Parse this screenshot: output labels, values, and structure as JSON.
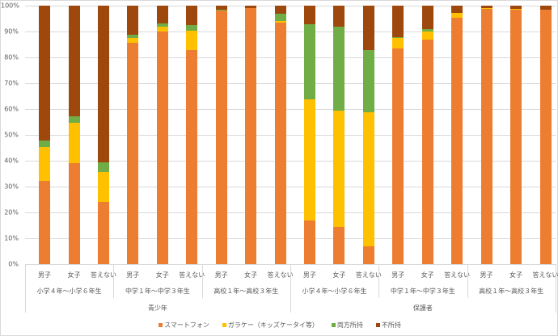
{
  "chart_data": {
    "type": "bar",
    "stacked": true,
    "percent": true,
    "title": "",
    "xlabel": "",
    "ylabel": "",
    "ylim": [
      0,
      100
    ],
    "y_ticks": [
      "0%",
      "10%",
      "20%",
      "30%",
      "40%",
      "50%",
      "60%",
      "70%",
      "80%",
      "90%",
      "100%"
    ],
    "grid": true,
    "legend_position": "bottom",
    "categories": [
      "青少年/小学４年～小学６年生/男子",
      "青少年/小学４年～小学６年生/女子",
      "青少年/小学４年～小学６年生/答えない",
      "青少年/中学１年～中学３年生/男子",
      "青少年/中学１年～中学３年生/女子",
      "青少年/中学１年～中学３年生/答えない",
      "青少年/高校１年～高校３年生/男子",
      "青少年/高校１年～高校３年生/女子",
      "青少年/高校１年～高校３年生/答えない",
      "保護者/小学４年～小学６年生/男子",
      "保護者/小学４年～小学６年生/女子",
      "保護者/小学４年～小学６年生/答えない",
      "保護者/中学１年～中学３年生/男子",
      "保護者/中学１年～中学３年生/女子",
      "保護者/中学１年～中学３年生/答えない",
      "保護者/高校１年～高校３年生/男子",
      "保護者/高校１年～高校３年生/女子",
      "保護者/高校１年～高校３年生/答えない"
    ],
    "category_levels": {
      "level1": [
        {
          "label": "青少年",
          "span": 9
        },
        {
          "label": "保護者",
          "span": 9
        }
      ],
      "level2": [
        {
          "label": "小学４年～小学６年生",
          "span": 3
        },
        {
          "label": "中学１年～中学３年生",
          "span": 3
        },
        {
          "label": "高校１年～高校３年生",
          "span": 3
        },
        {
          "label": "小学４年～小学６年生",
          "span": 3
        },
        {
          "label": "中学１年～中学３年生",
          "span": 3
        },
        {
          "label": "高校１年～高校３年生",
          "span": 3
        }
      ],
      "level3": [
        "男子",
        "女子",
        "答えない",
        "男子",
        "女子",
        "答えない",
        "男子",
        "女子",
        "答えない",
        "男子",
        "女子",
        "答えない",
        "男子",
        "女子",
        "答えない",
        "男子",
        "女子",
        "答えない"
      ]
    },
    "series": [
      {
        "name": "スマートフォン",
        "color": "#ED7D31",
        "values": [
          32.2,
          39.0,
          23.9,
          85.6,
          90.0,
          82.8,
          97.9,
          98.9,
          93.3,
          16.9,
          14.3,
          7.0,
          83.4,
          86.6,
          95.2,
          98.6,
          98.4,
          98.3
        ]
      },
      {
        "name": "ガラケー（キッズケータイ等）",
        "color": "#FFC000",
        "values": [
          13.1,
          15.7,
          11.6,
          1.8,
          1.7,
          7.5,
          0.4,
          0.0,
          0.6,
          46.7,
          45.1,
          51.7,
          4.2,
          3.3,
          1.7,
          0.3,
          0.3,
          0.0
        ]
      },
      {
        "name": "両方所持",
        "color": "#70AD47",
        "values": [
          2.5,
          2.5,
          3.9,
          1.3,
          1.3,
          2.1,
          0.1,
          0.0,
          2.7,
          29.0,
          32.4,
          24.1,
          0.1,
          1.0,
          0.0,
          0.0,
          0.0,
          0.0
        ]
      },
      {
        "name": "不所持",
        "color": "#9E480E",
        "values": [
          52.2,
          42.8,
          60.6,
          11.3,
          7.0,
          7.6,
          1.6,
          1.1,
          3.4,
          7.4,
          8.2,
          17.2,
          12.3,
          9.1,
          3.1,
          1.1,
          1.3,
          1.7
        ]
      }
    ]
  }
}
